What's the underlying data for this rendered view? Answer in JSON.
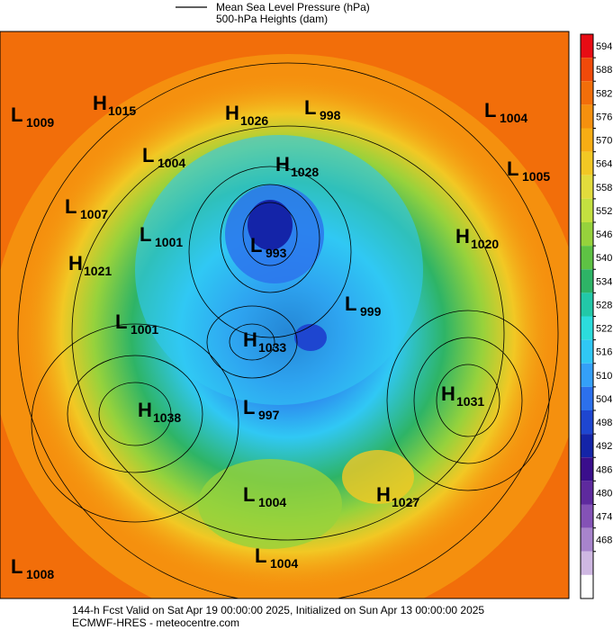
{
  "header": {
    "line1": "Mean Sea Level Pressure (hPa)",
    "line2": "500-hPa Heights (dam)"
  },
  "colorbar": {
    "ticks": [
      594,
      588,
      582,
      576,
      570,
      564,
      558,
      552,
      546,
      540,
      534,
      528,
      522,
      516,
      510,
      504,
      498,
      492,
      486,
      480,
      474,
      468
    ],
    "colors": [
      "#e80c14",
      "#f04a0a",
      "#f26e0a",
      "#f5900e",
      "#f7ad14",
      "#f2c824",
      "#e2dc3c",
      "#c4e040",
      "#96d23c",
      "#5ec244",
      "#2eb466",
      "#22c8a8",
      "#2cdcdc",
      "#30c8f4",
      "#34a0f8",
      "#2c70ec",
      "#1e46d0",
      "#1424a8",
      "#3a0e8c",
      "#5e2a9e",
      "#8452b6",
      "#a884cc",
      "#cfb8e2",
      "#ffffff"
    ]
  },
  "centers": [
    {
      "type": "L",
      "value": "1009"
    },
    {
      "type": "H",
      "value": "1015"
    },
    {
      "type": "H",
      "value": "1026"
    },
    {
      "type": "L",
      "value": "998"
    },
    {
      "type": "L",
      "value": "1004"
    },
    {
      "type": "L",
      "value": "1004"
    },
    {
      "type": "H",
      "value": "1028"
    },
    {
      "type": "L",
      "value": "1005"
    },
    {
      "type": "L",
      "value": "1007"
    },
    {
      "type": "L",
      "value": "1001"
    },
    {
      "type": "L",
      "value": "993"
    },
    {
      "type": "H",
      "value": "1020"
    },
    {
      "type": "H",
      "value": "1021"
    },
    {
      "type": "L",
      "value": "999"
    },
    {
      "type": "L",
      "value": "1001"
    },
    {
      "type": "H",
      "value": "1033"
    },
    {
      "type": "H",
      "value": "1031"
    },
    {
      "type": "H",
      "value": "1038"
    },
    {
      "type": "L",
      "value": "997"
    },
    {
      "type": "H",
      "value": "1027"
    },
    {
      "type": "L",
      "value": "1004"
    },
    {
      "type": "L",
      "value": "1008"
    },
    {
      "type": "L",
      "value": "1004"
    }
  ],
  "footer": {
    "line1": "144-h Fcst Valid on Sat Apr 19 00:00:00 2025, Initialized on Sun Apr 13 00:00:00 2025",
    "line2": "ECMWF-HRES  - meteocentre.com"
  }
}
